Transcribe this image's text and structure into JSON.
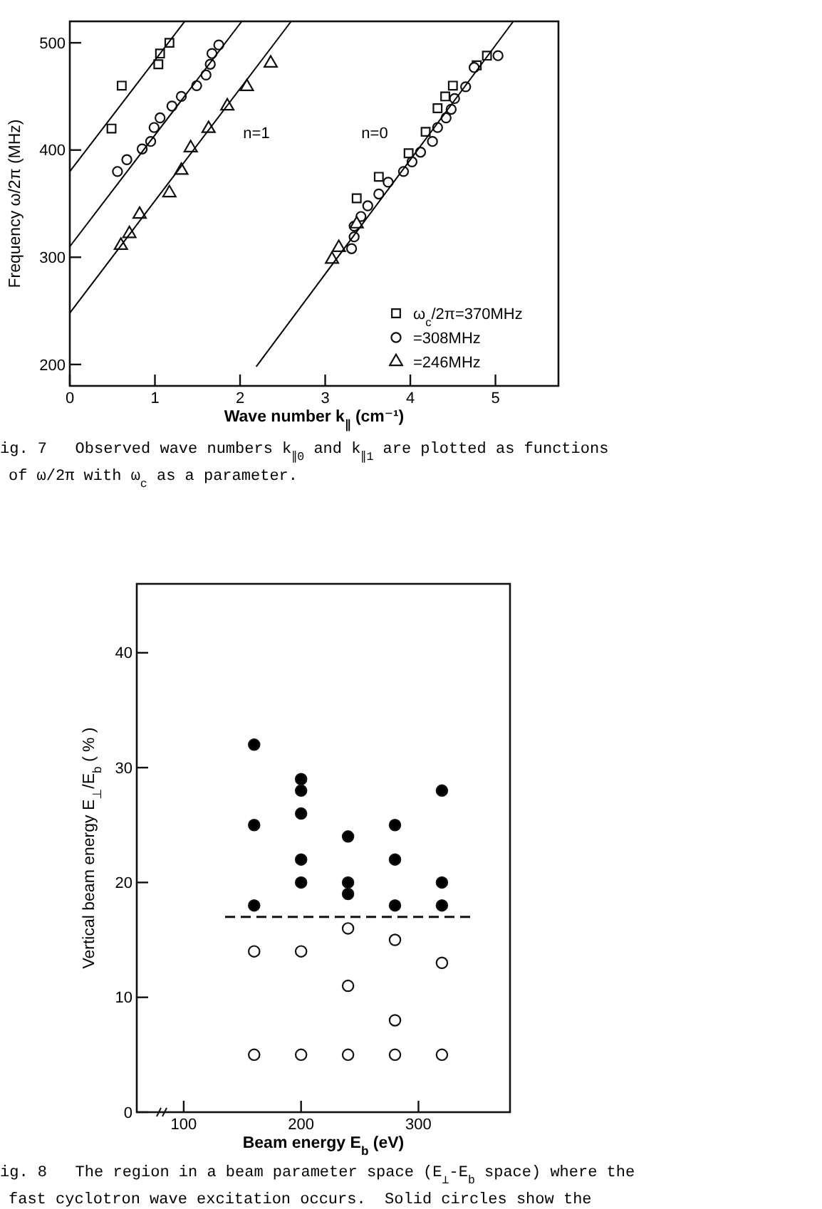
{
  "chart_data": [
    {
      "type": "scatter",
      "xlabel": "Wave number k$_{∥}$ (cm⁻¹)",
      "ylabel": "Frequency ω/2π (MHz)",
      "xlim": [
        0,
        5.74
      ],
      "ylim": [
        180,
        520
      ],
      "xticks": [
        0,
        1,
        2,
        3,
        4,
        5
      ],
      "yticks": [
        200,
        300,
        400,
        500
      ],
      "legend": "bottom right",
      "series": [
        {
          "name": "ω$_{c}$/2π=370MHz",
          "color": "#ffffff",
          "marker": "square",
          "x": [
            0.49,
            0.61,
            1.04,
            1.06,
            1.17,
            3.37,
            3.63,
            3.98,
            4.18,
            4.32,
            4.41,
            4.5,
            4.78,
            4.9
          ],
          "values": [
            420,
            460,
            480,
            490,
            500,
            355,
            375,
            397,
            417,
            439,
            450,
            460,
            479,
            488
          ]
        },
        {
          "name": "=308MHz",
          "color": "#ffffff",
          "marker": "circle",
          "x": [
            0.56,
            0.67,
            0.85,
            0.95,
            0.99,
            1.06,
            1.2,
            1.31,
            1.49,
            1.6,
            1.65,
            1.67,
            1.75,
            3.31,
            3.34,
            3.34,
            3.42,
            3.5,
            3.63,
            3.74,
            3.92,
            4.02,
            4.12,
            4.26,
            4.32,
            4.42,
            4.48,
            4.52,
            4.65,
            4.75,
            5.03
          ],
          "values": [
            380,
            391,
            401,
            408,
            421,
            430,
            441,
            450,
            460,
            470,
            480,
            490,
            498,
            308,
            319,
            329,
            338,
            348,
            359,
            370,
            380,
            389,
            398,
            408,
            421,
            430,
            438,
            448,
            459,
            477,
            488
          ]
        },
        {
          "name": "=246MHz",
          "color": "#ffffff",
          "marker": "triangle",
          "x": [
            0.6,
            0.7,
            0.82,
            1.17,
            1.31,
            1.42,
            1.63,
            1.85,
            2.08,
            2.36,
            3.08,
            3.16,
            3.37
          ],
          "values": [
            311,
            322,
            340,
            360,
            381,
            402,
            420,
            441,
            459,
            481,
            298,
            309,
            331
          ]
        },
        {
          "type": "line",
          "color": "#000000",
          "marker": "none",
          "x": [
            0,
            1.35
          ],
          "values": [
            380,
            520
          ]
        },
        {
          "type": "line",
          "color": "#000000",
          "marker": "none",
          "x": [
            0,
            2.02
          ],
          "values": [
            310,
            520
          ]
        },
        {
          "type": "line",
          "color": "#000000",
          "marker": "none",
          "x": [
            0,
            2.6
          ],
          "values": [
            248,
            520
          ]
        },
        {
          "type": "line",
          "color": "#000000",
          "marker": "none",
          "x": [
            2.19,
            5.21
          ],
          "values": [
            198,
            520
          ]
        }
      ],
      "annotations": [
        "n=1",
        "n=0",
        "ig. 7   Observed wave numbers k$_{∥0}$ and k$_{∥1}$ are plotted as functions of ω/2π with ω$_{c}$ as a parameter."
      ]
    },
    {
      "type": "scatter",
      "xlabel": "Beam energy E$_{b}$ (eV)",
      "ylabel": "Vertical beam energy E$_{⊥}$/E$_{b}$ ( % )",
      "xlim": [
        60,
        378
      ],
      "ylim": [
        0,
        46
      ],
      "xticks": [
        100,
        200,
        300
      ],
      "yticks": [
        0,
        10,
        20,
        30,
        40
      ],
      "series": [
        {
          "color": "#000000",
          "marker": "circle",
          "x": [
            160,
            160,
            160,
            200,
            200,
            200,
            200,
            200,
            240,
            240,
            240,
            280,
            280,
            280,
            320,
            320,
            320
          ],
          "values": [
            32,
            25,
            18,
            29,
            28,
            26,
            22,
            20,
            24,
            20,
            19,
            25,
            22,
            18,
            28,
            20,
            18
          ]
        },
        {
          "color": "#ffffff",
          "marker": "circle",
          "x": [
            160,
            160,
            200,
            200,
            240,
            240,
            240,
            280,
            280,
            280,
            320,
            320
          ],
          "values": [
            14,
            5,
            14,
            5,
            16,
            11,
            5,
            15,
            8,
            5,
            13,
            5
          ]
        }
      ],
      "ref_lines": [
        {
          "axis": "y",
          "value": 17,
          "line_style": "dashed"
        }
      ],
      "annotations": [
        "ig. 8   The region in a beam parameter space (E$_{⊥}$-E$_{b}$ space) where the fast cyclotron wave excitation occurs.  Solid circles show the"
      ]
    }
  ]
}
